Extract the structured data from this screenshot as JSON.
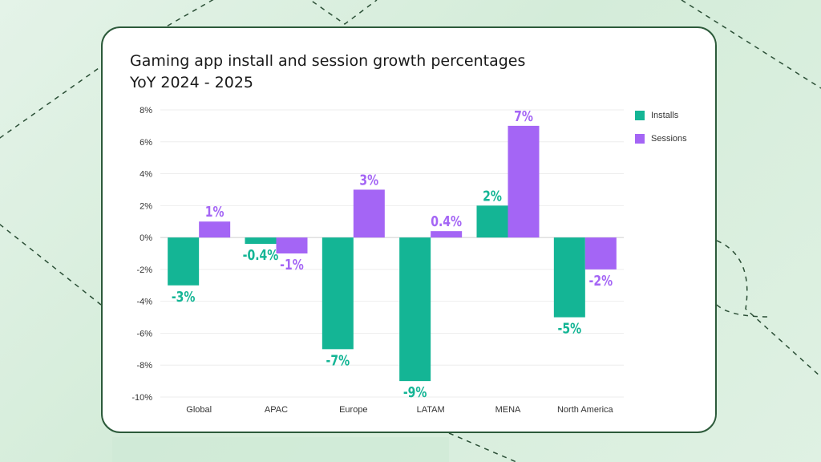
{
  "colors": {
    "installs": "#14b595",
    "sessions": "#a465f5",
    "background": "#dcefe0",
    "card_border": "#2c5a3a"
  },
  "card": {
    "title_line1": "Gaming app install and session growth percentages",
    "title_line2": "YoY 2024 - 2025"
  },
  "chart_data": {
    "type": "bar",
    "title": "Gaming app install and session growth percentages YoY 2024 - 2025",
    "xlabel": "",
    "ylabel": "",
    "ylim": [
      -10,
      8
    ],
    "yticks": [
      8,
      6,
      4,
      2,
      0,
      -2,
      -4,
      -6,
      -8,
      -10
    ],
    "ytick_labels": [
      "8%",
      "6%",
      "4%",
      "2%",
      "0%",
      "-2%",
      "-4%",
      "-6%",
      "-8%",
      "-10%"
    ],
    "grid": true,
    "legend_position": "top-right",
    "categories": [
      "Global",
      "APAC",
      "Europe",
      "LATAM",
      "MENA",
      "North America"
    ],
    "series": [
      {
        "name": "Installs",
        "values": [
          -3,
          -0.4,
          -7,
          -9,
          2,
          -5
        ],
        "labels": [
          "-3%",
          "-0.4%",
          "-7%",
          "-9%",
          "2%",
          "-5%"
        ]
      },
      {
        "name": "Sessions",
        "values": [
          1,
          -1,
          3,
          0.4,
          7,
          -2
        ],
        "labels": [
          "1%",
          "-1%",
          "3%",
          "0.4%",
          "7%",
          "-2%"
        ]
      }
    ]
  }
}
